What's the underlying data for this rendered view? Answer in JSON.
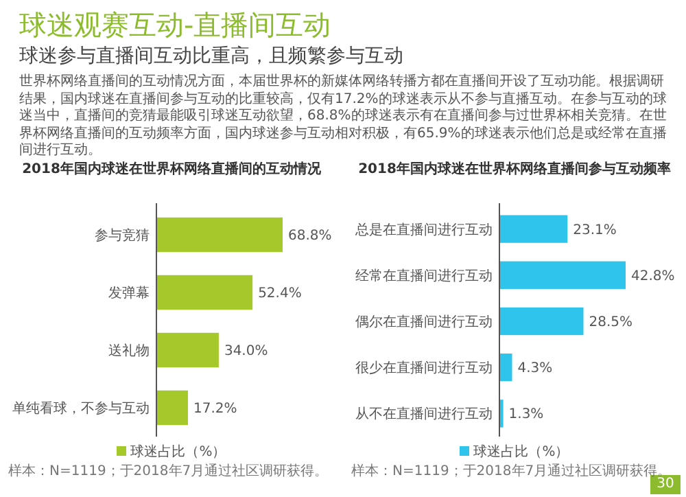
{
  "chart_data": [
    {
      "type": "other",
      "title": "球迷观赛互动-直播间互动",
      "subtitle": "球迷参与直播间互动比重高，且频繁参与互动",
      "annotations": [
        "世界杯网络直播间的互动情况方面，本届世界杯的新媒体网络转播方都在直播间开设了互动功能。根据调研结果，国内球迷在直播间参与互动的比重较高，仅有17.2%的球迷表示从不参与直播互动。在参与互动的球迷当中，直播间的竞猜最能吸引球迷互动欲望，68.8%的球迷表示有在直播间参与过世界杯相关竞猜。在世界杯网络直播间的互动频率方面，国内球迷参与互动相对积极，有65.9%的球迷表示他们总是或经常在直播间进行互动。",
        "30"
      ]
    },
    {
      "type": "bar",
      "orientation": "horizontal",
      "title": "2018年国内球迷在世界杯网络直播间的互动情况",
      "categories": [
        "参与竞猜",
        "发弹幕",
        "送礼物",
        "单纯看球，不参与互动"
      ],
      "series": [
        {
          "name": "球迷占比（%）",
          "color": "#a5c92a",
          "values": [
            68.8,
            52.4,
            34.0,
            17.2
          ],
          "value_labels": [
            "68.8%",
            "52.4%",
            "34.0%",
            "17.2%"
          ]
        }
      ],
      "legend": "bottom",
      "annotations": [
        "样本：N=1119；于2018年7月通过社区调研获得。"
      ]
    },
    {
      "type": "bar",
      "orientation": "horizontal",
      "title": "2018年国内球迷在世界杯网络直播间参与互动频率",
      "categories": [
        "总是在直播间进行互动",
        "经常在直播间进行互动",
        "偶尔在直播间进行互动",
        "很少在直播间进行互动",
        "从不在直播间进行互动"
      ],
      "series": [
        {
          "name": "球迷占比（%）",
          "color": "#2ec4ec",
          "values": [
            23.1,
            42.8,
            28.5,
            4.3,
            1.3
          ],
          "value_labels": [
            "23.1%",
            "42.8%",
            "28.5%",
            "4.3%",
            "1.3%"
          ]
        }
      ],
      "legend": "bottom",
      "annotations": [
        "样本：N=1119；于2018年7月通过社区调研获得。"
      ]
    }
  ]
}
